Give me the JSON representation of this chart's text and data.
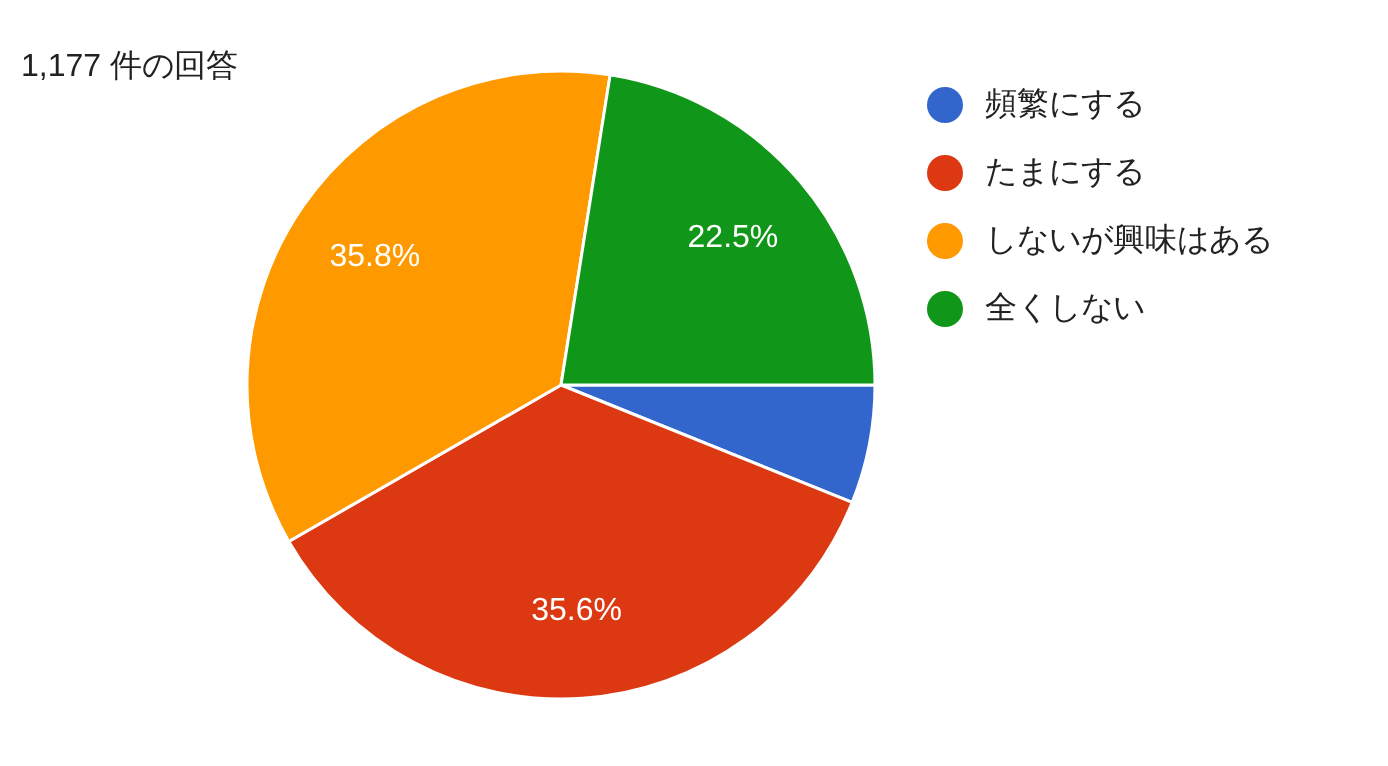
{
  "chart_data": {
    "type": "pie",
    "title": "1,177 件の回答",
    "categories": [
      "頻繁にする",
      "たまにする",
      "しないが興味はある",
      "全くしない"
    ],
    "values": [
      6.1,
      35.6,
      35.8,
      22.5
    ],
    "colors": [
      "#3366cc",
      "#dc3912",
      "#ff9900",
      "#109618"
    ],
    "value_labels": [
      null,
      "35.6%",
      "35.8%",
      "22.5%"
    ],
    "legend": "right"
  }
}
